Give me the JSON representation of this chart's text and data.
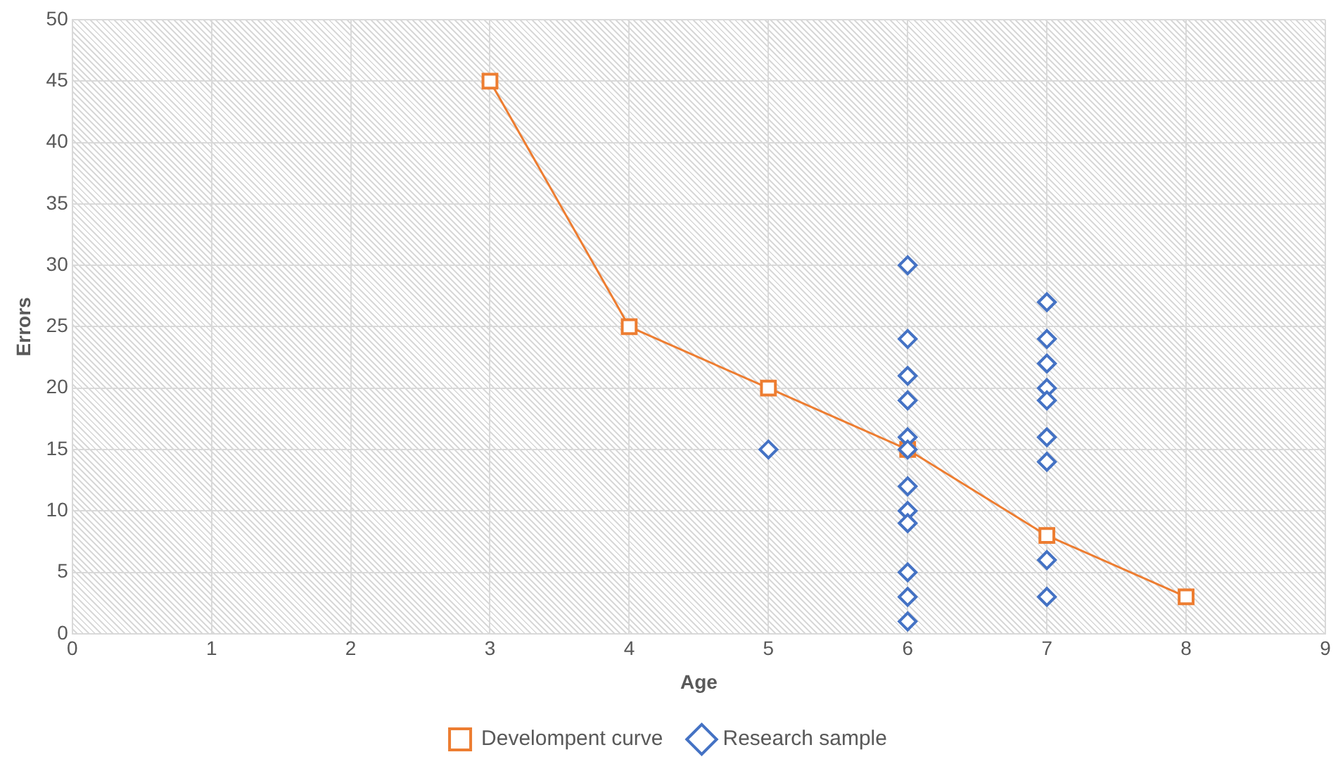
{
  "chart_data": {
    "type": "scatter",
    "xlabel": "Age",
    "ylabel": "Errors",
    "xlim": [
      0,
      9
    ],
    "xticks": [
      0,
      1,
      2,
      3,
      4,
      5,
      6,
      7,
      8,
      9
    ],
    "ylim": [
      0,
      50
    ],
    "yticks": [
      0,
      5,
      10,
      15,
      20,
      25,
      30,
      35,
      40,
      45,
      50
    ],
    "grid": true,
    "legend": "bottom",
    "series": [
      {
        "name": "Research sample",
        "marker": "diamond",
        "color": "#4472c4",
        "x": [
          5,
          6,
          6,
          6,
          6,
          6,
          6,
          6,
          6,
          6,
          6,
          6,
          6,
          7,
          7,
          7,
          7,
          7,
          7,
          7,
          7,
          7
        ],
        "values": [
          15,
          30,
          24,
          21,
          19,
          16,
          15,
          12,
          10,
          9,
          5,
          3,
          1,
          27,
          24,
          22,
          20,
          19,
          16,
          14,
          6,
          3
        ]
      },
      {
        "name": "Develompent curve",
        "type": "line",
        "marker": "square",
        "line_style": "solid",
        "color": "#ed7d31",
        "x": [
          3,
          4,
          5,
          6,
          7,
          8
        ],
        "values": [
          45,
          25,
          20,
          15,
          8,
          3
        ]
      }
    ]
  }
}
